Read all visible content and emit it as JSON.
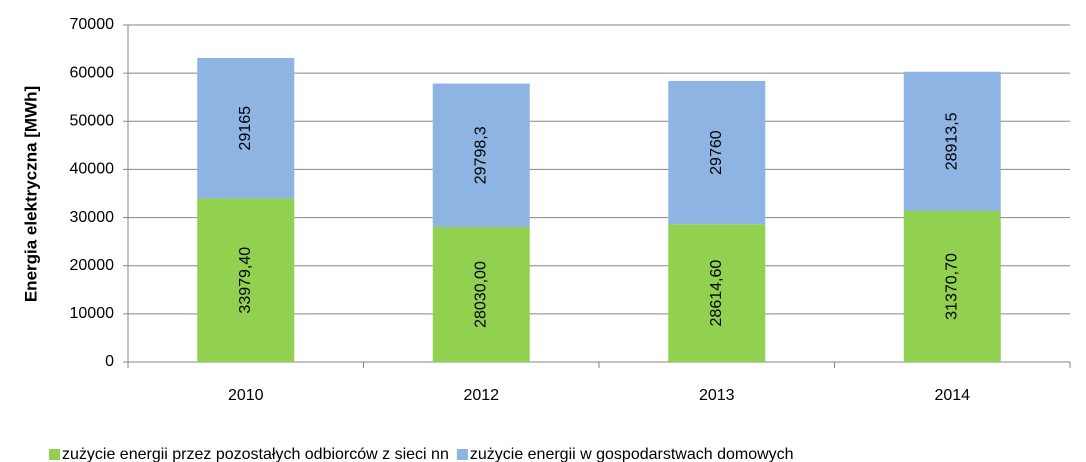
{
  "chart_data": {
    "type": "stacked_bar",
    "y_label": "Energia elektryczna [MWh]",
    "categories": [
      "2010",
      "2012",
      "2013",
      "2014"
    ],
    "series": [
      {
        "name": "zużycie energii przez pozostałych odbiorców z sieci nn",
        "color": "#92d050",
        "values": [
          33979.4,
          28030,
          28614.6,
          31370.7
        ],
        "value_labels": [
          "33979,40",
          "28030,00",
          "28614,60",
          "31370,70"
        ]
      },
      {
        "name": "zużycie energii w gospodarstwach domowych",
        "color": "#8db4e2",
        "values": [
          29165,
          29798.3,
          29760,
          28913.5
        ],
        "value_labels": [
          "29165",
          "29798,3",
          "29760",
          "28913,5"
        ]
      }
    ],
    "ylim": [
      0,
      70000
    ],
    "yticks": [
      0,
      10000,
      20000,
      30000,
      40000,
      50000,
      60000,
      70000
    ],
    "grid": true,
    "legend": "bottom"
  }
}
